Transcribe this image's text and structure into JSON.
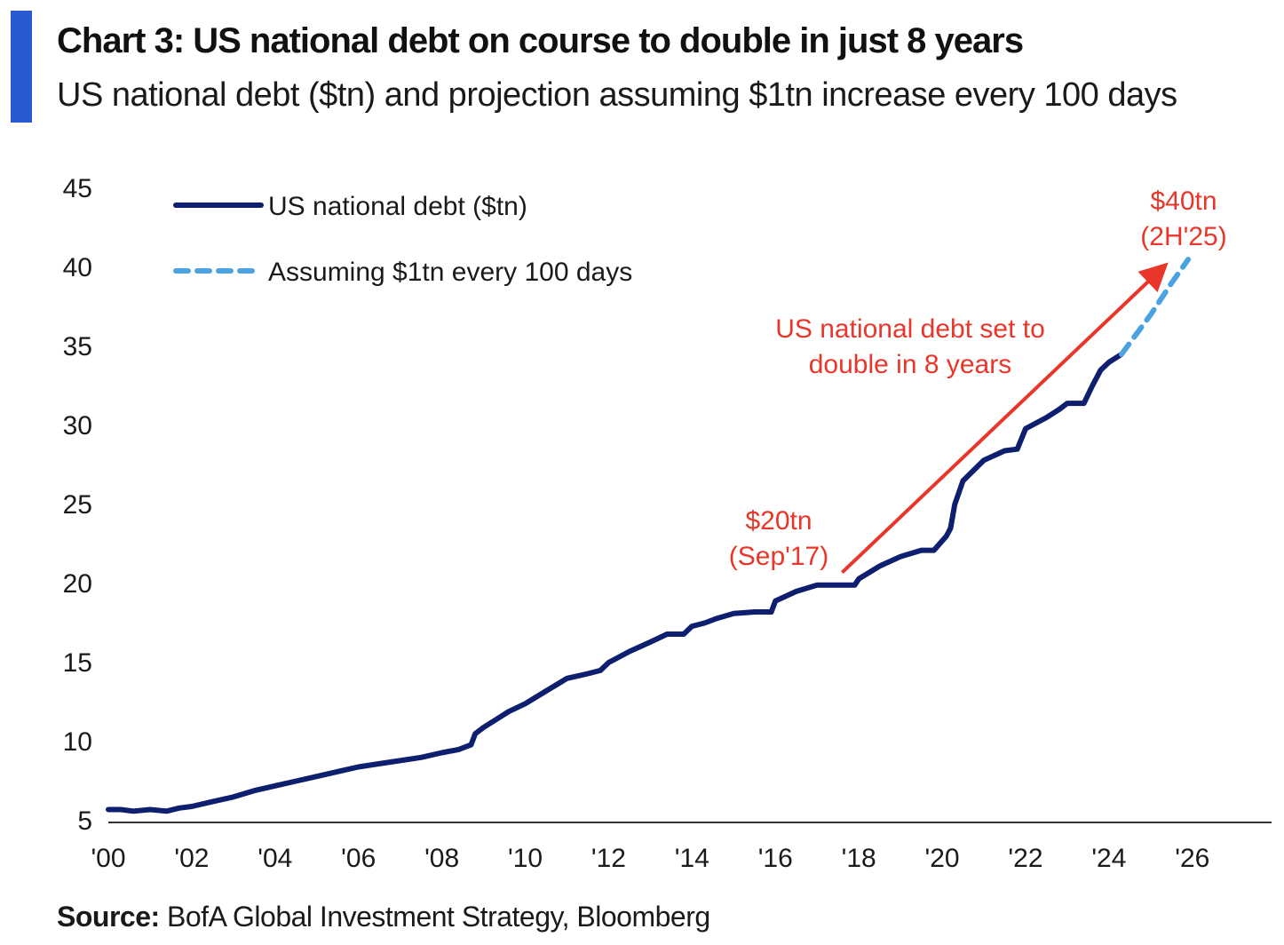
{
  "header": {
    "title": "Chart 3: US national debt on course to double in just 8 years",
    "subtitle": "US national debt ($tn) and projection assuming $1tn increase every 100 days"
  },
  "footer": {
    "source_label": "Source:",
    "source_text": " BofA Global Investment Strategy, Bloomberg"
  },
  "colors": {
    "accent": "#2b59d3",
    "series_actual": "#0d1f6e",
    "series_projection": "#4aa3df",
    "annotation": "#e8372a",
    "axis": "#333333"
  },
  "chart_data": {
    "type": "line",
    "title": "Chart 3: US national debt on course to double in just 8 years",
    "subtitle": "US national debt ($tn) and projection assuming $1tn increase every 100 days",
    "xlabel": "",
    "ylabel": "",
    "xlim": [
      2000,
      2027.9
    ],
    "ylim": [
      5,
      45
    ],
    "y_ticks": [
      5,
      10,
      15,
      20,
      25,
      30,
      35,
      40,
      45
    ],
    "x_ticks": [
      {
        "value": 2000,
        "label": "'00"
      },
      {
        "value": 2002,
        "label": "'02"
      },
      {
        "value": 2004,
        "label": "'04"
      },
      {
        "value": 2006,
        "label": "'06"
      },
      {
        "value": 2008,
        "label": "'08"
      },
      {
        "value": 2010,
        "label": "'10"
      },
      {
        "value": 2012,
        "label": "'12"
      },
      {
        "value": 2014,
        "label": "'14"
      },
      {
        "value": 2016,
        "label": "'16"
      },
      {
        "value": 2018,
        "label": "'18"
      },
      {
        "value": 2020,
        "label": "'20"
      },
      {
        "value": 2022,
        "label": "'22"
      },
      {
        "value": 2024,
        "label": "'24"
      },
      {
        "value": 2026,
        "label": "'26"
      }
    ],
    "grid": false,
    "legend_position": "top-left",
    "series": [
      {
        "name": "US national debt ($tn)",
        "style": "solid",
        "color": "#0d1f6e",
        "x": [
          2000.0,
          2000.3,
          2000.6,
          2001.0,
          2001.4,
          2001.7,
          2002.0,
          2002.5,
          2003.0,
          2003.5,
          2004.0,
          2004.5,
          2005.0,
          2005.5,
          2006.0,
          2006.5,
          2007.0,
          2007.5,
          2008.0,
          2008.4,
          2008.7,
          2008.8,
          2009.0,
          2009.3,
          2009.6,
          2010.0,
          2010.5,
          2011.0,
          2011.5,
          2011.8,
          2012.0,
          2012.5,
          2013.0,
          2013.4,
          2013.8,
          2014.0,
          2014.3,
          2014.6,
          2015.0,
          2015.5,
          2015.9,
          2016.0,
          2016.5,
          2017.0,
          2017.5,
          2017.9,
          2018.0,
          2018.5,
          2019.0,
          2019.5,
          2019.8,
          2020.1,
          2020.2,
          2020.3,
          2020.5,
          2021.0,
          2021.5,
          2021.8,
          2022.0,
          2022.5,
          2022.8,
          2023.0,
          2023.4,
          2023.6,
          2023.8,
          2024.0,
          2024.3
        ],
        "y": [
          5.7,
          5.7,
          5.6,
          5.7,
          5.6,
          5.8,
          5.9,
          6.2,
          6.5,
          6.9,
          7.2,
          7.5,
          7.8,
          8.1,
          8.4,
          8.6,
          8.8,
          9.0,
          9.3,
          9.5,
          9.8,
          10.5,
          10.9,
          11.4,
          11.9,
          12.4,
          13.2,
          14.0,
          14.3,
          14.5,
          15.0,
          15.7,
          16.3,
          16.8,
          16.8,
          17.3,
          17.5,
          17.8,
          18.1,
          18.2,
          18.2,
          18.9,
          19.5,
          19.9,
          19.9,
          19.9,
          20.3,
          21.1,
          21.7,
          22.1,
          22.1,
          23.0,
          23.5,
          25.0,
          26.5,
          27.8,
          28.4,
          28.5,
          29.8,
          30.5,
          31.0,
          31.4,
          31.4,
          32.5,
          33.5,
          34.0,
          34.5
        ]
      },
      {
        "name": "Assuming $1tn every 100 days",
        "style": "dashed",
        "color": "#4aa3df",
        "x": [
          2024.3,
          2025.0,
          2025.5,
          2025.9
        ],
        "y": [
          34.5,
          37.0,
          39.0,
          40.5
        ]
      }
    ],
    "annotations": [
      {
        "lines": [
          "$20tn",
          "(Sep'17)"
        ],
        "x": 2017.0,
        "y": 20.0
      },
      {
        "lines": [
          "$40tn",
          "(2H'25)"
        ],
        "x": 2025.9,
        "y": 40.5
      },
      {
        "lines": [
          "US national debt set to",
          "double in 8 years"
        ],
        "x": 2021.8,
        "y": 33.5
      },
      {
        "type": "arrow",
        "from": [
          2017.6,
          20.7
        ],
        "to": [
          2025.3,
          40.0
        ]
      }
    ]
  }
}
